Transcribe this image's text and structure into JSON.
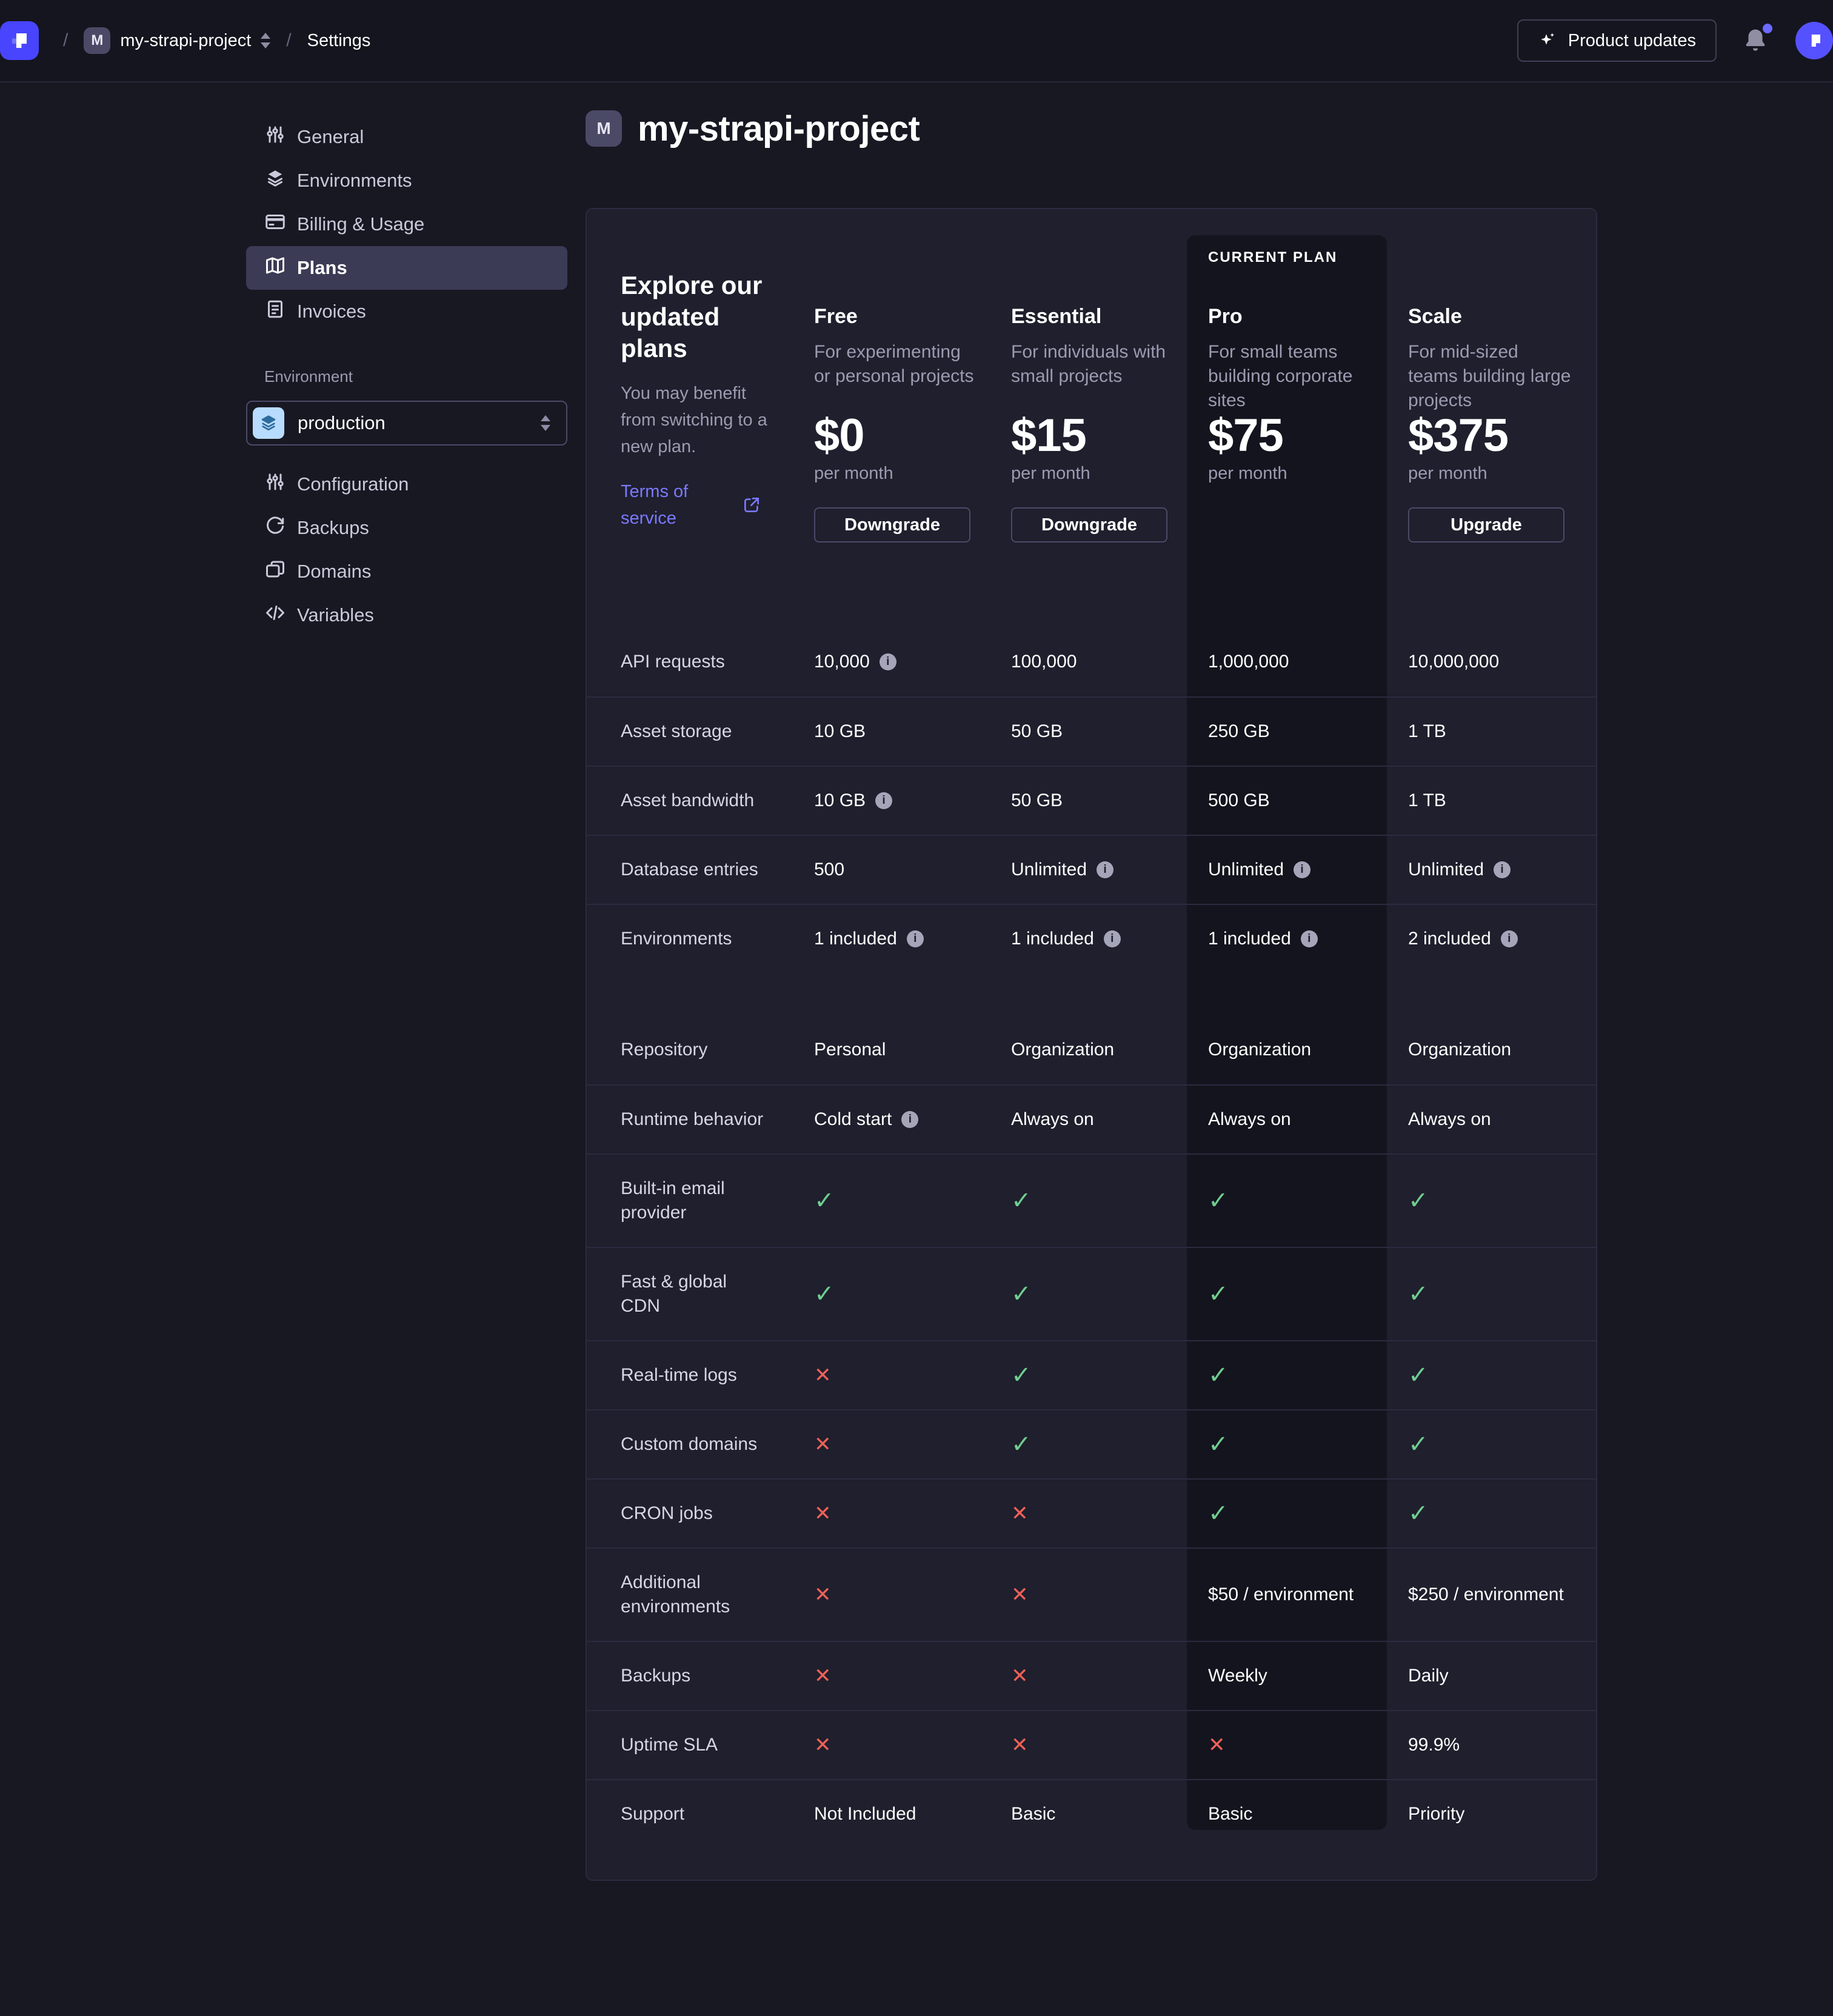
{
  "colors": {
    "brand": "#4945FF",
    "link": "#7B79FF",
    "success_check": "#6FCE8F",
    "danger_cross": "#EE6158",
    "env_badge_bg": "#B8DCFF",
    "env_badge_fg": "#2E6B9E",
    "notification_dot": "#6C6AFF",
    "current_plan_bg": "#14141E"
  },
  "topbar": {
    "breadcrumb": {
      "separator": "/",
      "project_initial": "M",
      "project": "my-strapi-project",
      "section": "Settings"
    },
    "product_updates_label": "Product updates",
    "icons": [
      "strapi-logo",
      "sparkle-icon",
      "bell-icon",
      "avatar"
    ]
  },
  "sidebar": {
    "items": [
      {
        "label": "General",
        "icon": "sliders-icon",
        "active": false
      },
      {
        "label": "Environments",
        "icon": "layers-icon",
        "active": false
      },
      {
        "label": "Billing & Usage",
        "icon": "credit-card-icon",
        "active": false
      },
      {
        "label": "Plans",
        "icon": "map-icon",
        "active": true
      },
      {
        "label": "Invoices",
        "icon": "invoice-icon",
        "active": false
      }
    ],
    "environment_label": "Environment",
    "environment_select": {
      "value": "production",
      "icon": "layers-icon"
    },
    "env_items": [
      {
        "label": "Configuration",
        "icon": "sliders-icon",
        "active": false
      },
      {
        "label": "Backups",
        "icon": "refresh-icon",
        "active": false
      },
      {
        "label": "Domains",
        "icon": "folders-icon",
        "active": false
      },
      {
        "label": "Variables",
        "icon": "code-icon",
        "active": false
      }
    ]
  },
  "main": {
    "project_initial": "M",
    "title": "my-strapi-project",
    "plans_card": {
      "heading": "Explore our updated plans",
      "subheading": "You may benefit from switching to a new plan.",
      "terms_label": "Terms of service",
      "current_plan_label": "CURRENT PLAN",
      "plans": [
        {
          "name": "Free",
          "description": "For experimenting or personal projects",
          "price": "$0",
          "period": "per month",
          "action": "Downgrade",
          "current": false
        },
        {
          "name": "Essential",
          "description": "For individuals with small projects",
          "price": "$15",
          "period": "per month",
          "action": "Downgrade",
          "current": false
        },
        {
          "name": "Pro",
          "description": "For small teams building corporate sites",
          "price": "$75",
          "period": "per month",
          "action": null,
          "current": true
        },
        {
          "name": "Scale",
          "description": "For mid-sized teams building large projects",
          "price": "$375",
          "period": "per month",
          "action": "Upgrade",
          "current": false
        }
      ],
      "sections": [
        {
          "rows": [
            {
              "label": "API requests",
              "values": [
                {
                  "v": "10,000",
                  "info": true
                },
                {
                  "v": "100,000"
                },
                {
                  "v": "1,000,000"
                },
                {
                  "v": "10,000,000"
                }
              ]
            },
            {
              "label": "Asset storage",
              "values": [
                {
                  "v": "10 GB"
                },
                {
                  "v": "50 GB"
                },
                {
                  "v": "250 GB"
                },
                {
                  "v": "1 TB"
                }
              ]
            },
            {
              "label": "Asset bandwidth",
              "values": [
                {
                  "v": "10 GB",
                  "info": true
                },
                {
                  "v": "50 GB"
                },
                {
                  "v": "500 GB"
                },
                {
                  "v": "1 TB"
                }
              ]
            },
            {
              "label": "Database entries",
              "values": [
                {
                  "v": "500"
                },
                {
                  "v": "Unlimited",
                  "info": true
                },
                {
                  "v": "Unlimited",
                  "info": true
                },
                {
                  "v": "Unlimited",
                  "info": true
                }
              ]
            },
            {
              "label": "Environments",
              "values": [
                {
                  "v": "1 included",
                  "info": true
                },
                {
                  "v": "1 included",
                  "info": true
                },
                {
                  "v": "1 included",
                  "info": true
                },
                {
                  "v": "2 included",
                  "info": true
                }
              ]
            }
          ]
        },
        {
          "rows": [
            {
              "label": "Repository",
              "values": [
                {
                  "v": "Personal"
                },
                {
                  "v": "Organization"
                },
                {
                  "v": "Organization"
                },
                {
                  "v": "Organization"
                }
              ]
            },
            {
              "label": "Runtime behavior",
              "values": [
                {
                  "v": "Cold start",
                  "info": true
                },
                {
                  "v": "Always on"
                },
                {
                  "v": "Always on"
                },
                {
                  "v": "Always on"
                }
              ]
            },
            {
              "label": "Built-in email provider",
              "values": [
                {
                  "v": "check"
                },
                {
                  "v": "check"
                },
                {
                  "v": "check"
                },
                {
                  "v": "check"
                }
              ]
            },
            {
              "label": "Fast & global CDN",
              "values": [
                {
                  "v": "check"
                },
                {
                  "v": "check"
                },
                {
                  "v": "check"
                },
                {
                  "v": "check"
                }
              ]
            },
            {
              "label": "Real-time logs",
              "values": [
                {
                  "v": "cross"
                },
                {
                  "v": "check"
                },
                {
                  "v": "check"
                },
                {
                  "v": "check"
                }
              ]
            },
            {
              "label": "Custom domains",
              "values": [
                {
                  "v": "cross"
                },
                {
                  "v": "check"
                },
                {
                  "v": "check"
                },
                {
                  "v": "check"
                }
              ]
            },
            {
              "label": "CRON jobs",
              "values": [
                {
                  "v": "cross"
                },
                {
                  "v": "cross"
                },
                {
                  "v": "check"
                },
                {
                  "v": "check"
                }
              ]
            },
            {
              "label": "Additional environments",
              "values": [
                {
                  "v": "cross"
                },
                {
                  "v": "cross"
                },
                {
                  "v": "$50 / environment"
                },
                {
                  "v": "$250 / environment"
                }
              ]
            },
            {
              "label": "Backups",
              "values": [
                {
                  "v": "cross"
                },
                {
                  "v": "cross"
                },
                {
                  "v": "Weekly"
                },
                {
                  "v": "Daily"
                }
              ]
            },
            {
              "label": "Uptime SLA",
              "values": [
                {
                  "v": "cross"
                },
                {
                  "v": "cross"
                },
                {
                  "v": "cross"
                },
                {
                  "v": "99.9%"
                }
              ]
            },
            {
              "label": "Support",
              "values": [
                {
                  "v": "Not Included"
                },
                {
                  "v": "Basic"
                },
                {
                  "v": "Basic"
                },
                {
                  "v": "Priority"
                }
              ]
            }
          ]
        }
      ]
    }
  }
}
